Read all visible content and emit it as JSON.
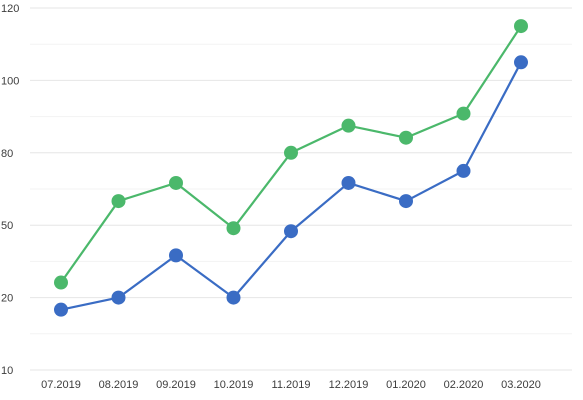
{
  "chart_data": {
    "type": "line",
    "title": "",
    "xlabel": "",
    "ylabel": "",
    "categories": [
      "07.2019",
      "08.2019",
      "09.2019",
      "10.2019",
      "11.2019",
      "12.2019",
      "01.2020",
      "02.2020",
      "03.2020"
    ],
    "y_tick_labels": [
      "10",
      "20",
      "50",
      "80",
      "100",
      "120"
    ],
    "ylim": [
      0,
      120
    ],
    "grid": true,
    "legend": "none",
    "series": [
      {
        "color": "#4bb86b",
        "values": [
          29,
          56,
          62,
          47,
          72,
          81,
          77,
          85,
          114
        ]
      },
      {
        "color": "#3a6cc4",
        "values": [
          20,
          24,
          38,
          24,
          46,
          62,
          56,
          66,
          102
        ]
      }
    ]
  }
}
